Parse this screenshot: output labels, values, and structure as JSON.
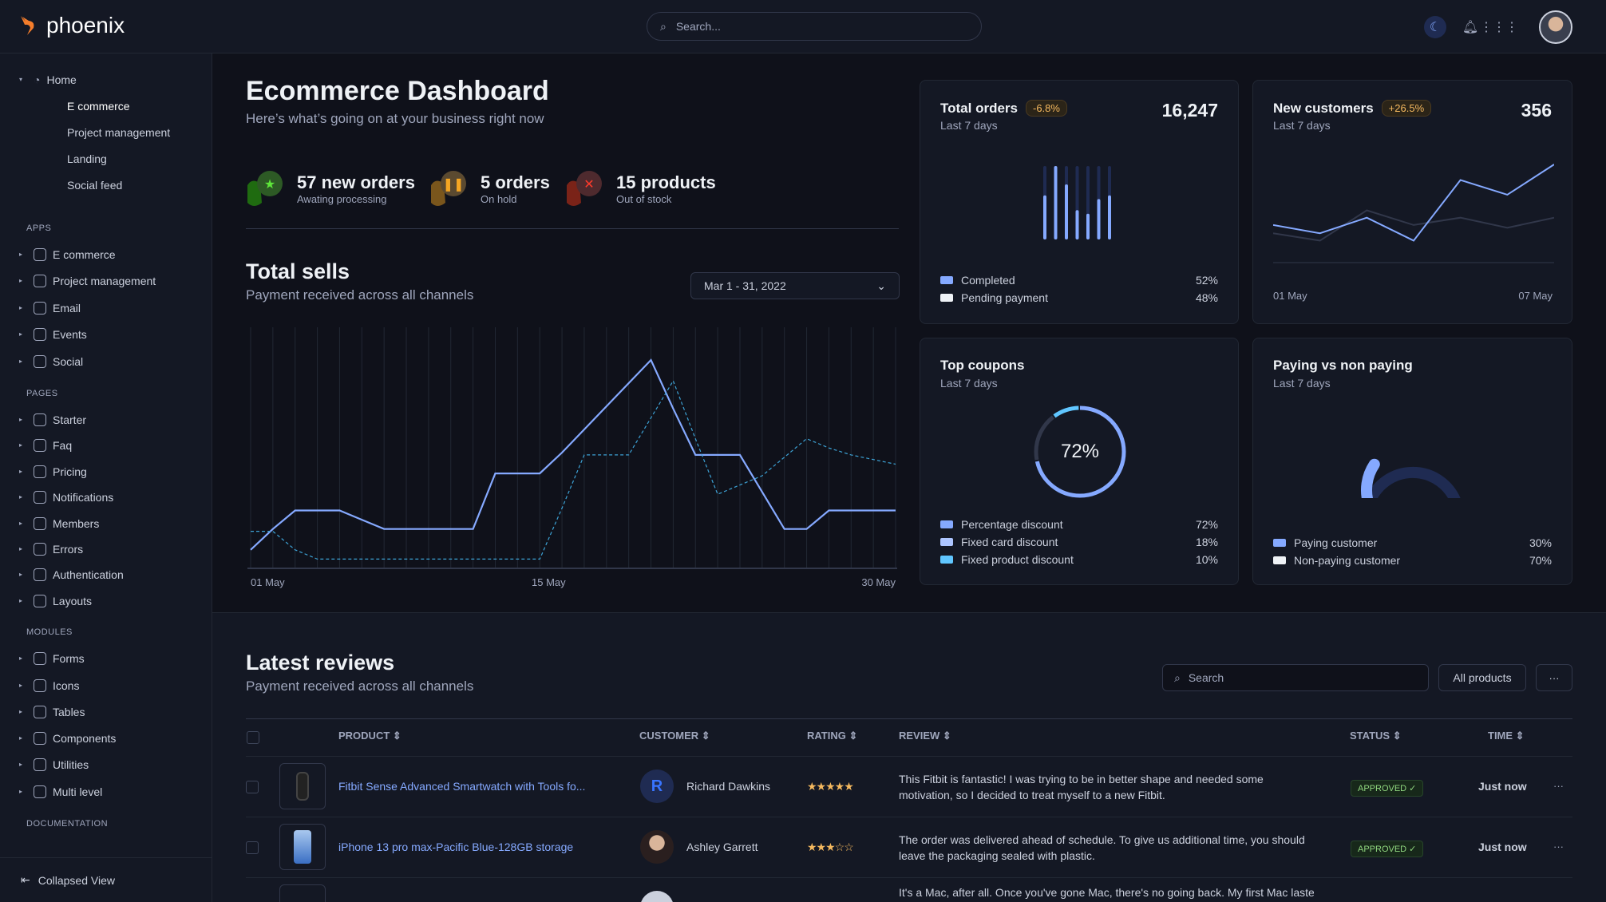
{
  "app": {
    "name": "phoenix",
    "search_placeholder": "Search..."
  },
  "sidebar": {
    "home": {
      "label": "Home",
      "children": [
        "E commerce",
        "Project management",
        "Landing",
        "Social feed"
      ]
    },
    "sections": [
      {
        "title": "APPS",
        "items": [
          {
            "label": "E commerce",
            "icon": "cart-icon"
          },
          {
            "label": "Project management",
            "icon": "clipboard-icon"
          },
          {
            "label": "Email",
            "icon": "mail-icon"
          },
          {
            "label": "Events",
            "icon": "bookmark-icon"
          },
          {
            "label": "Social",
            "icon": "share-icon"
          }
        ]
      },
      {
        "title": "PAGES",
        "items": [
          {
            "label": "Starter",
            "icon": "compass-icon"
          },
          {
            "label": "Faq",
            "icon": "help-icon"
          },
          {
            "label": "Pricing",
            "icon": "tag-icon"
          },
          {
            "label": "Notifications",
            "icon": "bell-icon"
          },
          {
            "label": "Members",
            "icon": "users-icon"
          },
          {
            "label": "Errors",
            "icon": "alert-icon"
          },
          {
            "label": "Authentication",
            "icon": "lock-icon"
          },
          {
            "label": "Layouts",
            "icon": "layout-icon"
          }
        ]
      },
      {
        "title": "MODULES",
        "items": [
          {
            "label": "Forms",
            "icon": "file-icon"
          },
          {
            "label": "Icons",
            "icon": "grid-icon"
          },
          {
            "label": "Tables",
            "icon": "columns-icon"
          },
          {
            "label": "Components",
            "icon": "package-icon"
          },
          {
            "label": "Utilities",
            "icon": "tool-icon"
          },
          {
            "label": "Multi level",
            "icon": "layers-icon"
          }
        ]
      },
      {
        "title": "DOCUMENTATION",
        "items": []
      }
    ],
    "collapse_label": "Collapsed View"
  },
  "header": {
    "title": "Ecommerce Dashboard",
    "subtitle": "Here’s what’s going on at your business right now"
  },
  "stats": [
    {
      "title": "57 new orders",
      "sub": "Awating processing",
      "color": "#25b003"
    },
    {
      "title": "5 orders",
      "sub": "On hold",
      "color": "#e5780b"
    },
    {
      "title": "15 products",
      "sub": "Out of stock",
      "color": "#ec1f00"
    }
  ],
  "total_sells": {
    "title": "Total sells",
    "subtitle": "Payment received across all channels",
    "date_range": "Mar 1 - 31, 2022"
  },
  "chart_data": [
    {
      "type": "line",
      "x": [
        1,
        2,
        3,
        4,
        5,
        6,
        7,
        8,
        9,
        10,
        11,
        12,
        13,
        14,
        15,
        16,
        17,
        18,
        19,
        20,
        21,
        22,
        23,
        24,
        25,
        26,
        27,
        28,
        29,
        30
      ],
      "x_ticks": [
        "01 May",
        "15 May",
        "30 May"
      ],
      "grid": "vertical",
      "series": [
        {
          "style": "solid",
          "color": "#85a9ff",
          "values": [
            8,
            17,
            25,
            25,
            25,
            21,
            17,
            17,
            17,
            17,
            17,
            41,
            41,
            41,
            50,
            60,
            70,
            80,
            90,
            69,
            49,
            49,
            49,
            33,
            17,
            17,
            25,
            25,
            25,
            25
          ]
        },
        {
          "style": "dashed",
          "color": "#3da3d6",
          "values": [
            16,
            16,
            8,
            4,
            4,
            4,
            4,
            4,
            4,
            4,
            4,
            4,
            4,
            4,
            26,
            49,
            49,
            49,
            65,
            81,
            56,
            32,
            36,
            40,
            48,
            56,
            52,
            49,
            47,
            45
          ]
        }
      ]
    },
    {
      "type": "bar",
      "title": "Total orders",
      "values": [
        0.6,
        1.0,
        0.75,
        0.4,
        0.35,
        0.55,
        0.6
      ]
    },
    {
      "type": "line",
      "title": "New customers",
      "x_ticks": [
        "01 May",
        "07 May"
      ],
      "series": [
        {
          "color": "#85a9ff",
          "values": [
            34,
            25,
            42,
            17,
            83,
            67,
            100
          ]
        },
        {
          "color": "#31374a",
          "values": [
            25,
            17,
            50,
            34,
            42,
            31,
            42
          ]
        }
      ]
    },
    {
      "type": "pie",
      "title": "Top coupons",
      "center_label": "72%",
      "slices": [
        {
          "label": "Percentage discount",
          "value": 72
        },
        {
          "label": "Fixed card discount",
          "value": 18
        },
        {
          "label": "Fixed product discount",
          "value": 10
        }
      ]
    },
    {
      "type": "pie",
      "title": "Paying vs non paying",
      "slices": [
        {
          "label": "Paying customer",
          "value": 30
        },
        {
          "label": "Non-paying customer",
          "value": 70
        }
      ]
    }
  ],
  "cards": {
    "orders": {
      "title": "Total orders",
      "badge": "-6.8%",
      "sub": "Last 7 days",
      "value": "16,247",
      "legend": [
        {
          "label": "Completed",
          "value": "52%",
          "color": "#85a9ff"
        },
        {
          "label": "Pending payment",
          "value": "48%",
          "color": "#eff2f6"
        }
      ]
    },
    "customers": {
      "title": "New customers",
      "badge": "+26.5%",
      "sub": "Last 7 days",
      "value": "356",
      "x_start": "01 May",
      "x_end": "07 May"
    },
    "coupons": {
      "title": "Top coupons",
      "sub": "Last 7 days",
      "center": "72%",
      "legend": [
        {
          "label": "Percentage discount",
          "value": "72%",
          "color": "#85a9ff"
        },
        {
          "label": "Fixed card discount",
          "value": "18%",
          "color": "#adc5ff"
        },
        {
          "label": "Fixed product discount",
          "value": "10%",
          "color": "#60c6ff"
        }
      ]
    },
    "paying": {
      "title": "Paying vs non paying",
      "sub": "Last 7 days",
      "legend": [
        {
          "label": "Paying customer",
          "value": "30%",
          "color": "#85a9ff"
        },
        {
          "label": "Non-paying customer",
          "value": "70%",
          "color": "#eff2f6"
        }
      ]
    }
  },
  "reviews": {
    "title": "Latest reviews",
    "subtitle": "Payment received across all channels",
    "search_placeholder": "Search",
    "filter": "All products",
    "more": "···",
    "columns": [
      "PRODUCT",
      "CUSTOMER",
      "RATING",
      "REVIEW",
      "STATUS",
      "TIME"
    ],
    "rows": [
      {
        "product": "Fitbit Sense Advanced Smartwatch with Tools fo...",
        "customer": "Richard Dawkins",
        "initial": "R",
        "rating": "★★★★★",
        "review": "This Fitbit is fantastic! I was trying to be in better shape and needed some motivation, so I decided to treat myself to a new Fitbit.",
        "status": "APPROVED ✓",
        "time": "Just now"
      },
      {
        "product": "iPhone 13 pro max-Pacific Blue-128GB storage",
        "customer": "Ashley Garrett",
        "rating": "★★★☆☆",
        "review": "The order was delivered ahead of schedule. To give us additional time, you should leave the packaging sealed with plastic.",
        "status": "APPROVED ✓",
        "time": "Just now"
      },
      {
        "review": "It's a Mac, after all. Once you've gone Mac, there's no going back. My first Mac lasted"
      }
    ]
  }
}
